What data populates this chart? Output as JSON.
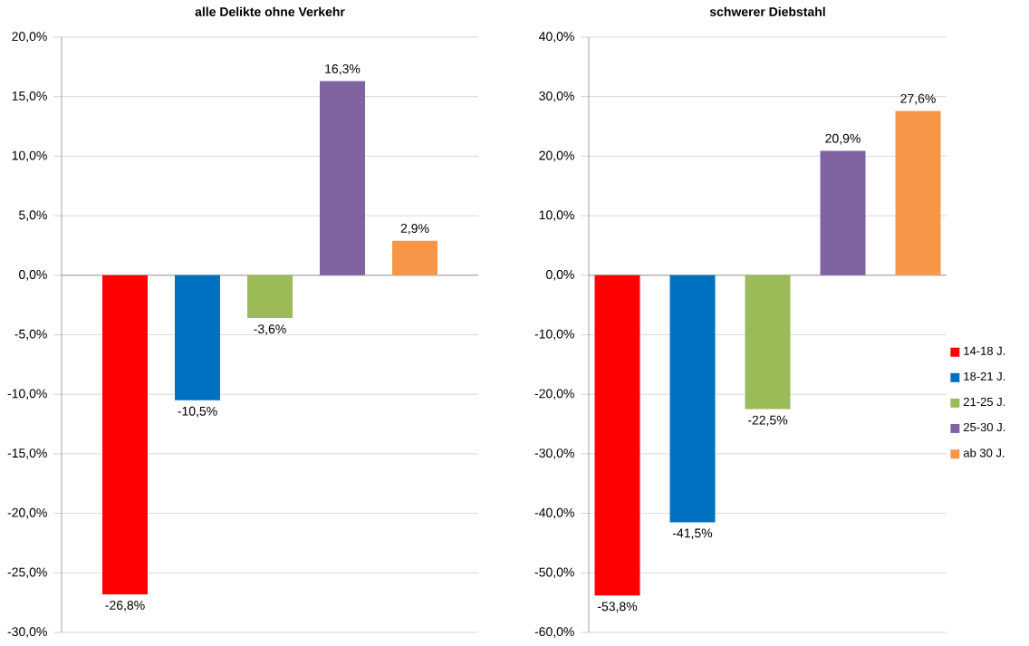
{
  "chart_data": [
    {
      "type": "bar",
      "title": "alle Delikte ohne Verkehr",
      "categories": [
        null
      ],
      "series": [
        {
          "color": "#ff0000",
          "values": [
            -26.8
          ],
          "value_labels": [
            "-26,8%"
          ]
        },
        {
          "color": "#0070c0",
          "values": [
            -10.5
          ],
          "value_labels": [
            "-10,5%"
          ]
        },
        {
          "color": "#9bbb59",
          "values": [
            -3.6
          ],
          "value_labels": [
            "-3,6%"
          ]
        },
        {
          "color": "#8064a2",
          "values": [
            16.3
          ],
          "value_labels": [
            "16,3%"
          ]
        },
        {
          "color": "#f79646",
          "values": [
            2.9
          ],
          "value_labels": [
            "2,9%"
          ]
        }
      ],
      "ylim": [
        -30,
        20
      ],
      "yticks": [
        {
          "value": -30,
          "label": "-30,0%"
        },
        {
          "value": -25,
          "label": "-25,0%"
        },
        {
          "value": -20,
          "label": "-20,0%"
        },
        {
          "value": -15,
          "label": "-15,0%"
        },
        {
          "value": -10,
          "label": "-10,0%"
        },
        {
          "value": -5,
          "label": "-5,0%"
        },
        {
          "value": 0,
          "label": "0,0%"
        },
        {
          "value": 5,
          "label": "5,0%"
        },
        {
          "value": 10,
          "label": "10,0%"
        },
        {
          "value": 15,
          "label": "15,0%"
        },
        {
          "value": 20,
          "label": "20,0%"
        }
      ],
      "grid": "y",
      "tick_labels": "y",
      "legend": false
    },
    {
      "type": "bar",
      "title": "schwerer Diebstahl",
      "categories": [
        null
      ],
      "series": [
        {
          "name": "14-18 J.",
          "color": "#ff0000",
          "values": [
            -53.8
          ],
          "value_labels": [
            "-53,8%"
          ]
        },
        {
          "name": "18-21 J.",
          "color": "#0070c0",
          "values": [
            -41.5
          ],
          "value_labels": [
            "-41,5%"
          ]
        },
        {
          "name": "21-25 J.",
          "color": "#9bbb59",
          "values": [
            -22.5
          ],
          "value_labels": [
            "-22,5%"
          ]
        },
        {
          "name": "25-30 J.",
          "color": "#8064a2",
          "values": [
            20.9
          ],
          "value_labels": [
            "20,9%"
          ]
        },
        {
          "name": "ab 30 J.",
          "color": "#f79646",
          "values": [
            27.6
          ],
          "value_labels": [
            "27,6%"
          ]
        }
      ],
      "ylim": [
        -60,
        40
      ],
      "yticks": [
        {
          "value": -60,
          "label": "-60,0%"
        },
        {
          "value": -50,
          "label": "-50,0%"
        },
        {
          "value": -40,
          "label": "-40,0%"
        },
        {
          "value": -30,
          "label": "-30,0%"
        },
        {
          "value": -20,
          "label": "-20,0%"
        },
        {
          "value": -10,
          "label": "-10,0%"
        },
        {
          "value": 0,
          "label": "0,0%"
        },
        {
          "value": 10,
          "label": "10,0%"
        },
        {
          "value": 20,
          "label": "20,0%"
        },
        {
          "value": 30,
          "label": "30,0%"
        },
        {
          "value": 40,
          "label": "40,0%"
        }
      ],
      "grid": "y",
      "tick_labels": "y",
      "legend": "right"
    }
  ]
}
